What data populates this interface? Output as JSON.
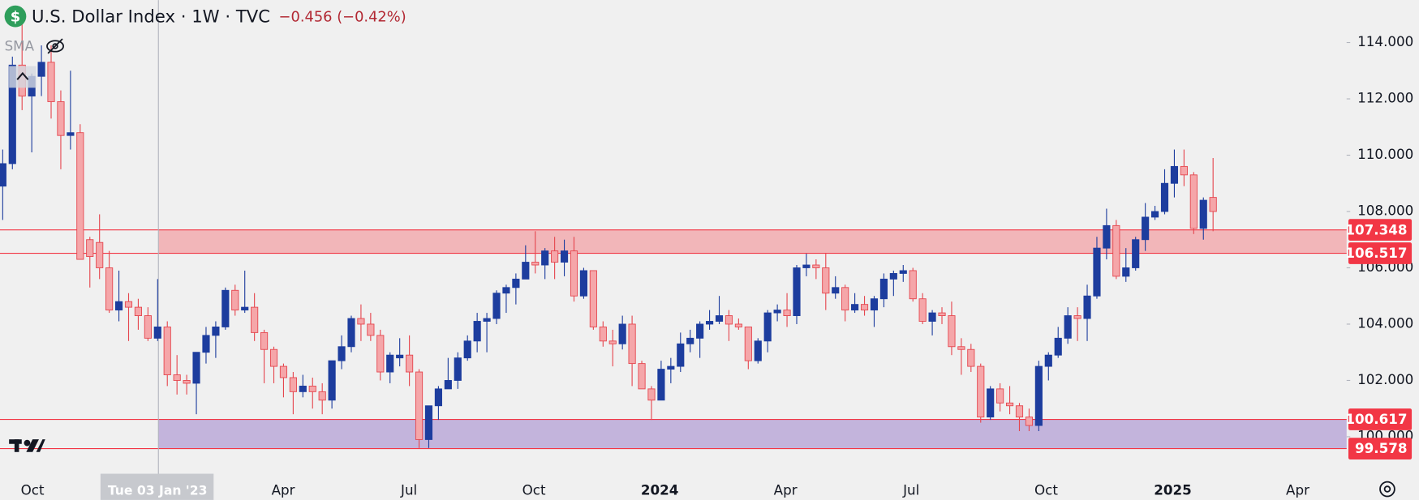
{
  "chart_data": {
    "type": "candlestick",
    "title": "U.S. Dollar Index · 1W · TVC",
    "change": "−0.456 (−0.42%)",
    "indicator": "SMA",
    "crosshair_label": "Tue 03 Jan '23",
    "up_color": "#1d3d9e",
    "down_color": "#f5a6a9",
    "down_edge": "#e5464e",
    "ylim": [
      98.655,
      115.509
    ],
    "yticks": [
      {
        "value": 100,
        "label": "100.000"
      },
      {
        "value": 102,
        "label": "102.000"
      },
      {
        "value": 104,
        "label": "104.000"
      },
      {
        "value": 106,
        "label": "106.000"
      },
      {
        "value": 108,
        "label": "108.000"
      },
      {
        "value": 110,
        "label": "110.000"
      },
      {
        "value": 112,
        "label": "112.000"
      },
      {
        "value": 114,
        "label": "114.000"
      }
    ],
    "xlim": [
      -0.28,
      138.79
    ],
    "xticks": [
      {
        "value": 3.08,
        "label": "Oct"
      },
      {
        "value": 28.97,
        "label": "Apr"
      },
      {
        "value": 41.96,
        "label": "Jul"
      },
      {
        "value": 54.86,
        "label": "Oct"
      },
      {
        "value": 67.85,
        "label": "2024"
      },
      {
        "value": 80.84,
        "label": "Apr"
      },
      {
        "value": 93.83,
        "label": "Jul"
      },
      {
        "value": 107.76,
        "label": "Oct"
      },
      {
        "value": 120.84,
        "label": "2025"
      },
      {
        "value": 133.74,
        "label": "Apr"
      }
    ],
    "crosshair_x": 16.08,
    "zones": [
      {
        "from": 106.517,
        "to": 107.348,
        "color": "#f23645",
        "fill": "#f2b6b9"
      },
      {
        "from": 99.578,
        "to": 100.617,
        "color": "#f23645",
        "fill": "#c3b4dc"
      }
    ],
    "open": [
      108.9,
      109.7,
      113.2,
      112.1,
      112.8,
      113.3,
      111.9,
      110.7,
      110.8,
      107.0,
      106.9,
      106.0,
      104.5,
      104.8,
      104.6,
      104.3,
      103.5,
      103.9,
      102.2,
      102.0,
      101.9,
      103.0,
      103.6,
      103.9,
      105.2,
      104.5,
      104.6,
      103.7,
      103.1,
      102.5,
      102.1,
      101.6,
      101.8,
      101.6,
      101.3,
      102.7,
      103.2,
      104.2,
      104.0,
      103.6,
      102.3,
      102.8,
      102.9,
      102.3,
      99.9,
      101.1,
      101.7,
      102.0,
      102.8,
      103.4,
      104.1,
      104.2,
      105.1,
      105.3,
      105.6,
      106.2,
      106.1,
      106.6,
      106.2,
      106.6,
      105.0,
      105.9,
      103.9,
      103.4,
      103.3,
      104.0,
      102.6,
      101.7,
      101.3,
      102.4,
      102.5,
      103.3,
      103.5,
      104.0,
      104.1,
      104.3,
      104.0,
      103.9,
      102.7,
      103.4,
      104.4,
      104.5,
      104.3,
      106.0,
      106.1,
      106.0,
      105.1,
      105.3,
      104.5,
      104.7,
      104.5,
      104.9,
      105.6,
      105.8,
      105.9,
      104.9,
      104.1,
      104.4,
      104.3,
      103.2,
      103.1,
      102.5,
      100.7,
      101.7,
      101.2,
      101.1,
      100.7,
      100.4,
      102.5,
      102.9,
      103.5,
      104.3,
      104.2,
      105.0,
      106.7,
      107.5,
      105.7,
      106.0,
      107.0,
      107.8,
      108.0,
      109.0,
      109.6,
      109.3,
      107.4,
      108.5
    ],
    "high": [
      110.2,
      113.5,
      114.8,
      112.9,
      113.9,
      113.9,
      112.3,
      113.0,
      111.1,
      107.1,
      107.9,
      106.6,
      105.9,
      105.1,
      104.9,
      104.6,
      105.6,
      104.1,
      102.9,
      102.2,
      103.0,
      103.9,
      104.1,
      105.3,
      105.4,
      105.9,
      105.1,
      103.8,
      103.2,
      102.6,
      102.3,
      102.2,
      102.1,
      101.9,
      102.7,
      103.6,
      104.3,
      104.7,
      104.4,
      103.8,
      103.0,
      103.5,
      103.6,
      102.4,
      101.1,
      101.8,
      102.8,
      103.0,
      103.6,
      104.4,
      104.4,
      105.2,
      105.4,
      105.8,
      106.8,
      107.3,
      106.7,
      107.1,
      107.0,
      107.1,
      106.0,
      105.9,
      104.1,
      103.8,
      104.3,
      104.3,
      102.7,
      101.8,
      102.7,
      102.8,
      103.7,
      103.8,
      104.1,
      104.5,
      105.0,
      104.5,
      104.2,
      103.9,
      103.5,
      104.5,
      104.7,
      105.1,
      106.1,
      106.5,
      106.3,
      106.5,
      105.7,
      105.4,
      105.1,
      105.0,
      105.0,
      105.8,
      105.9,
      106.1,
      106.0,
      105.1,
      104.5,
      104.6,
      104.8,
      103.5,
      103.3,
      102.6,
      101.8,
      101.9,
      101.8,
      101.2,
      101.0,
      102.7,
      103.0,
      103.9,
      104.6,
      104.6,
      105.4,
      107.1,
      108.1,
      107.7,
      106.7,
      107.1,
      108.3,
      108.2,
      109.5,
      110.2,
      110.2,
      109.4,
      108.5,
      109.9
    ],
    "low": [
      107.7,
      109.5,
      111.6,
      110.1,
      112.1,
      111.3,
      109.5,
      110.2,
      106.3,
      105.3,
      105.6,
      104.4,
      104.1,
      103.4,
      103.8,
      103.4,
      103.4,
      101.8,
      101.5,
      101.5,
      100.8,
      102.6,
      102.8,
      103.8,
      104.3,
      104.4,
      103.4,
      101.9,
      101.9,
      101.4,
      100.8,
      101.4,
      101.0,
      100.8,
      101.0,
      102.4,
      103.0,
      103.4,
      103.4,
      102.0,
      101.9,
      102.5,
      101.8,
      99.6,
      99.6,
      100.6,
      101.7,
      101.7,
      102.7,
      103.0,
      103.0,
      104.0,
      104.4,
      104.7,
      105.6,
      105.8,
      105.6,
      105.6,
      105.7,
      104.8,
      104.9,
      103.8,
      103.2,
      102.5,
      103.1,
      101.8,
      101.7,
      100.6,
      101.3,
      101.9,
      102.3,
      103.0,
      102.8,
      103.8,
      104.0,
      103.4,
      103.8,
      102.4,
      102.6,
      103.0,
      104.1,
      103.9,
      104.0,
      105.7,
      105.6,
      104.5,
      104.9,
      104.1,
      104.4,
      104.3,
      103.9,
      104.6,
      105.0,
      105.5,
      104.8,
      104.0,
      103.6,
      104.0,
      102.9,
      102.2,
      102.3,
      100.5,
      100.6,
      100.9,
      100.8,
      100.2,
      100.2,
      100.2,
      102.0,
      102.8,
      103.3,
      103.4,
      103.4,
      104.9,
      106.3,
      105.6,
      105.5,
      105.9,
      106.6,
      107.7,
      107.9,
      108.5,
      108.9,
      107.2,
      107.0,
      107.3
    ],
    "close": [
      109.7,
      113.2,
      112.1,
      112.8,
      113.3,
      111.9,
      110.7,
      110.8,
      106.3,
      106.4,
      106.0,
      104.5,
      104.8,
      104.6,
      104.3,
      103.5,
      103.9,
      102.2,
      102.0,
      101.9,
      103.0,
      103.6,
      103.9,
      105.2,
      104.5,
      104.6,
      103.7,
      103.1,
      102.5,
      102.1,
      101.6,
      101.8,
      101.6,
      101.3,
      102.7,
      103.2,
      104.2,
      104.0,
      103.6,
      102.3,
      102.9,
      102.9,
      102.3,
      99.9,
      101.1,
      101.7,
      102.0,
      102.8,
      103.4,
      104.1,
      104.2,
      105.1,
      105.3,
      105.6,
      106.2,
      106.1,
      106.6,
      106.2,
      106.6,
      105.0,
      105.9,
      103.9,
      103.4,
      103.3,
      104.0,
      102.6,
      101.7,
      101.3,
      102.4,
      102.5,
      103.3,
      103.5,
      104.0,
      104.1,
      104.3,
      104.0,
      103.9,
      102.7,
      103.4,
      104.4,
      104.5,
      104.3,
      106.0,
      106.1,
      106.0,
      105.1,
      105.3,
      104.5,
      104.7,
      104.5,
      104.9,
      105.6,
      105.8,
      105.9,
      104.9,
      104.1,
      104.4,
      104.3,
      103.2,
      103.1,
      102.5,
      100.7,
      101.7,
      101.2,
      101.1,
      100.7,
      100.4,
      102.5,
      102.9,
      103.5,
      104.3,
      104.2,
      105.0,
      106.7,
      107.5,
      105.7,
      106.0,
      107.0,
      107.8,
      108.0,
      109.0,
      109.6,
      109.3,
      107.4,
      108.4,
      108.0
    ]
  }
}
